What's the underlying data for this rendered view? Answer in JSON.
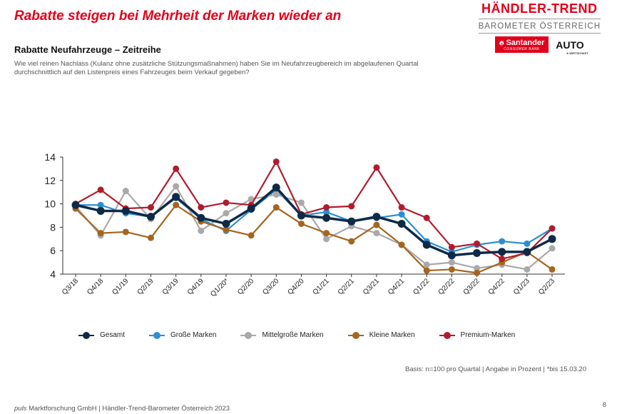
{
  "headline": "Rabatte steigen bei Mehrheit der Marken wieder an",
  "brand": {
    "title": "HÄNDLER-TREND",
    "subtitle": "BAROMETER ÖSTERREICH",
    "santander": "Santander",
    "santander_sub": "CONSUMER BANK",
    "auto": "AUTO",
    "auto_sub": "& WIRTSCHAFT"
  },
  "chart_title": "Rabatte Neufahrzeuge – Zeitreihe",
  "question": "Wie viel reinen Nachlass (Kulanz ohne zusätzliche Stützungsmaßnahmen) haben Sie im Neufahrzeugbereich im abgelaufenen Quartal durchschnittlich auf den Listenpreis eines Fahrzeuges beim Verkauf gegeben?",
  "basis": "Basis: n=100 pro Quartal | Angabe in Prozent | *bis 15.03.20",
  "footer": {
    "brand": "puls",
    "text": " Marktforschung GmbH | Händler-Trend-Barometer Österreich 2023"
  },
  "page_number": "8",
  "chart_data": {
    "type": "line",
    "title": "Rabatte Neufahrzeuge – Zeitreihe",
    "xlabel": "",
    "ylabel": "",
    "ylim": [
      4,
      14
    ],
    "yticks": [
      4,
      6,
      8,
      10,
      12,
      14
    ],
    "grid": false,
    "legend_position": "bottom",
    "categories": [
      "Q3/18",
      "Q4/18",
      "Q1/19",
      "Q2/19",
      "Q3/19",
      "Q4/19",
      "Q1/20*",
      "Q2/20",
      "Q3/20",
      "Q4/20",
      "Q1/21",
      "Q2/21",
      "Q3/21",
      "Q4/21",
      "Q1/22",
      "Q2/22",
      "Q3/22",
      "Q4/22",
      "Q1/23",
      "Q2/23"
    ],
    "series": [
      {
        "name": "Große Marken",
        "color": "#2a8fd4",
        "values": [
          9.9,
          9.9,
          9.2,
          8.9,
          10.5,
          8.7,
          7.7,
          9.5,
          11.2,
          9.0,
          9.3,
          8.5,
          8.8,
          9.1,
          6.8,
          5.9,
          6.5,
          6.8,
          6.6,
          7.9
        ]
      },
      {
        "name": "Mittelgroße Marken",
        "color": "#a9a9a9",
        "values": [
          9.8,
          7.3,
          11.1,
          8.7,
          11.5,
          7.7,
          9.2,
          10.4,
          10.8,
          10.1,
          7.0,
          8.1,
          7.5,
          6.5,
          4.8,
          5.0,
          4.5,
          4.8,
          4.4,
          6.2
        ]
      },
      {
        "name": "Kleine Marken",
        "color": "#a5651f",
        "values": [
          9.6,
          7.5,
          7.6,
          7.1,
          9.9,
          8.5,
          7.8,
          7.3,
          9.7,
          8.3,
          7.5,
          6.8,
          8.2,
          6.5,
          4.3,
          4.4,
          4.1,
          5.0,
          5.9,
          4.4
        ]
      },
      {
        "name": "Premium-Marken",
        "color": "#b01c2e",
        "values": [
          10.0,
          11.2,
          9.6,
          9.7,
          13.0,
          9.7,
          10.1,
          9.9,
          13.6,
          9.1,
          9.7,
          9.8,
          13.1,
          9.7,
          8.8,
          6.3,
          6.6,
          5.3,
          5.8,
          7.9
        ]
      },
      {
        "name": "Gesamt",
        "color": "#0e2a47",
        "values": [
          9.9,
          9.4,
          9.4,
          8.9,
          10.6,
          8.8,
          8.3,
          9.6,
          11.4,
          9.0,
          8.8,
          8.5,
          8.9,
          8.3,
          6.5,
          5.6,
          5.8,
          5.9,
          5.9,
          7.0
        ]
      }
    ],
    "legend_order": [
      "Gesamt",
      "Große Marken",
      "Mittelgroße Marken",
      "Kleine Marken",
      "Premium-Marken"
    ]
  }
}
